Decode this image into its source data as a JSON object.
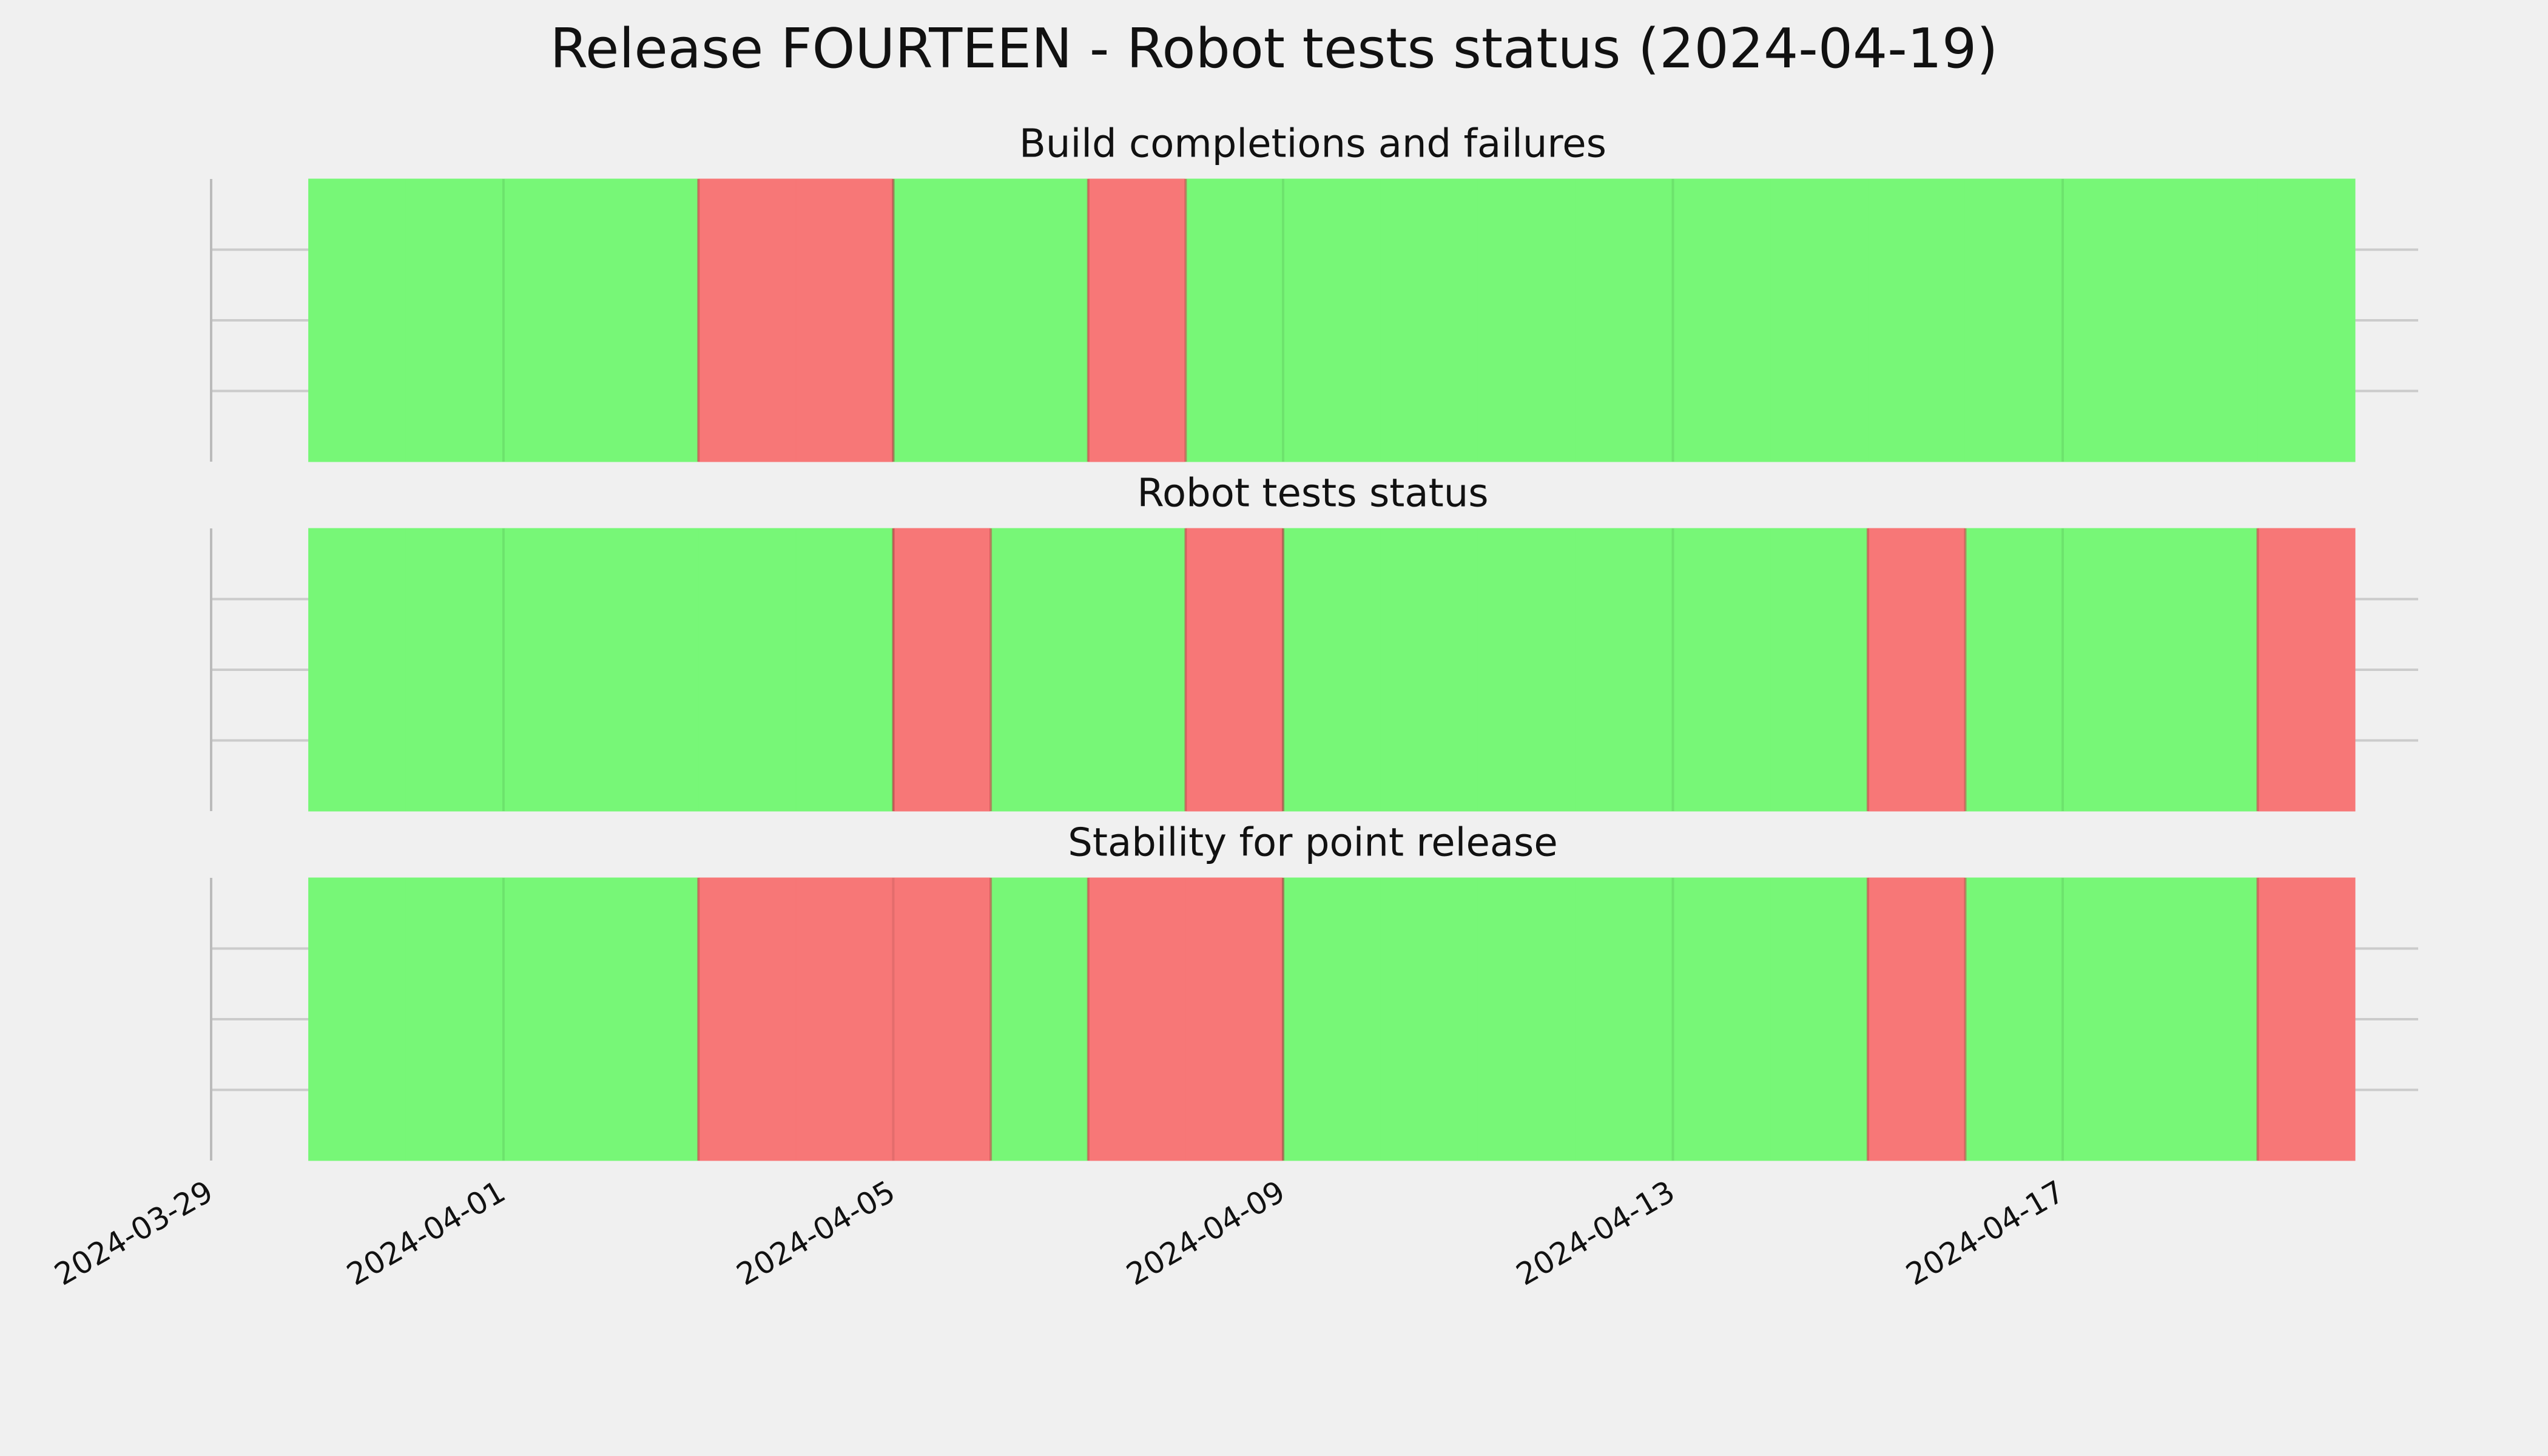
{
  "title": "Release FOURTEEN - Robot tests status (2024-04-19)",
  "chart_data": [
    {
      "type": "status-timeline",
      "title": "Build completions and failures",
      "categories": [
        "2024-03-30",
        "2024-03-31",
        "2024-04-01",
        "2024-04-02",
        "2024-04-03",
        "2024-04-04",
        "2024-04-05",
        "2024-04-06",
        "2024-04-07",
        "2024-04-08",
        "2024-04-09",
        "2024-04-10",
        "2024-04-11",
        "2024-04-12",
        "2024-04-13",
        "2024-04-14",
        "2024-04-15",
        "2024-04-16",
        "2024-04-17",
        "2024-04-18",
        "2024-04-19"
      ],
      "values": [
        1,
        1,
        1,
        1,
        0,
        0,
        1,
        1,
        0,
        1,
        1,
        1,
        1,
        1,
        1,
        1,
        1,
        1,
        1,
        1,
        1
      ],
      "colors": [
        "#f77777",
        "#77f777"
      ],
      "xlim": [
        "2024-03-29",
        "2024-04-20"
      ],
      "xticks": [
        "2024-03-29",
        "2024-04-01",
        "2024-04-05",
        "2024-04-09",
        "2024-04-13",
        "2024-04-17"
      ],
      "ylim": [
        0,
        1
      ],
      "yticks": [
        0.25,
        0.5,
        0.75
      ],
      "grid": true
    },
    {
      "type": "status-timeline",
      "title": "Robot tests status",
      "categories": [
        "2024-03-30",
        "2024-03-31",
        "2024-04-01",
        "2024-04-02",
        "2024-04-03",
        "2024-04-04",
        "2024-04-05",
        "2024-04-06",
        "2024-04-07",
        "2024-04-08",
        "2024-04-09",
        "2024-04-10",
        "2024-04-11",
        "2024-04-12",
        "2024-04-13",
        "2024-04-14",
        "2024-04-15",
        "2024-04-16",
        "2024-04-17",
        "2024-04-18",
        "2024-04-19"
      ],
      "values": [
        1,
        1,
        1,
        1,
        1,
        1,
        0,
        1,
        1,
        0,
        1,
        1,
        1,
        1,
        1,
        1,
        0,
        1,
        1,
        1,
        0
      ],
      "colors": [
        "#f77777",
        "#77f777"
      ],
      "xlim": [
        "2024-03-29",
        "2024-04-20"
      ],
      "xticks": [
        "2024-03-29",
        "2024-04-01",
        "2024-04-05",
        "2024-04-09",
        "2024-04-13",
        "2024-04-17"
      ],
      "ylim": [
        0,
        1
      ],
      "yticks": [
        0.25,
        0.5,
        0.75
      ],
      "grid": true
    },
    {
      "type": "status-timeline",
      "title": "Stability for point release",
      "categories": [
        "2024-03-30",
        "2024-03-31",
        "2024-04-01",
        "2024-04-02",
        "2024-04-03",
        "2024-04-04",
        "2024-04-05",
        "2024-04-06",
        "2024-04-07",
        "2024-04-08",
        "2024-04-09",
        "2024-04-10",
        "2024-04-11",
        "2024-04-12",
        "2024-04-13",
        "2024-04-14",
        "2024-04-15",
        "2024-04-16",
        "2024-04-17",
        "2024-04-18",
        "2024-04-19"
      ],
      "values": [
        1,
        1,
        1,
        1,
        0,
        0,
        0,
        1,
        0,
        0,
        1,
        1,
        1,
        1,
        1,
        1,
        0,
        1,
        1,
        1,
        0
      ],
      "colors": [
        "#f77777",
        "#77f777"
      ],
      "xlim": [
        "2024-03-29",
        "2024-04-20"
      ],
      "xticks": [
        "2024-03-29",
        "2024-04-01",
        "2024-04-05",
        "2024-04-09",
        "2024-04-13",
        "2024-04-17"
      ],
      "ylim": [
        0,
        1
      ],
      "yticks": [
        0.25,
        0.5,
        0.75
      ],
      "grid": true,
      "show_xtick_labels": true
    }
  ]
}
